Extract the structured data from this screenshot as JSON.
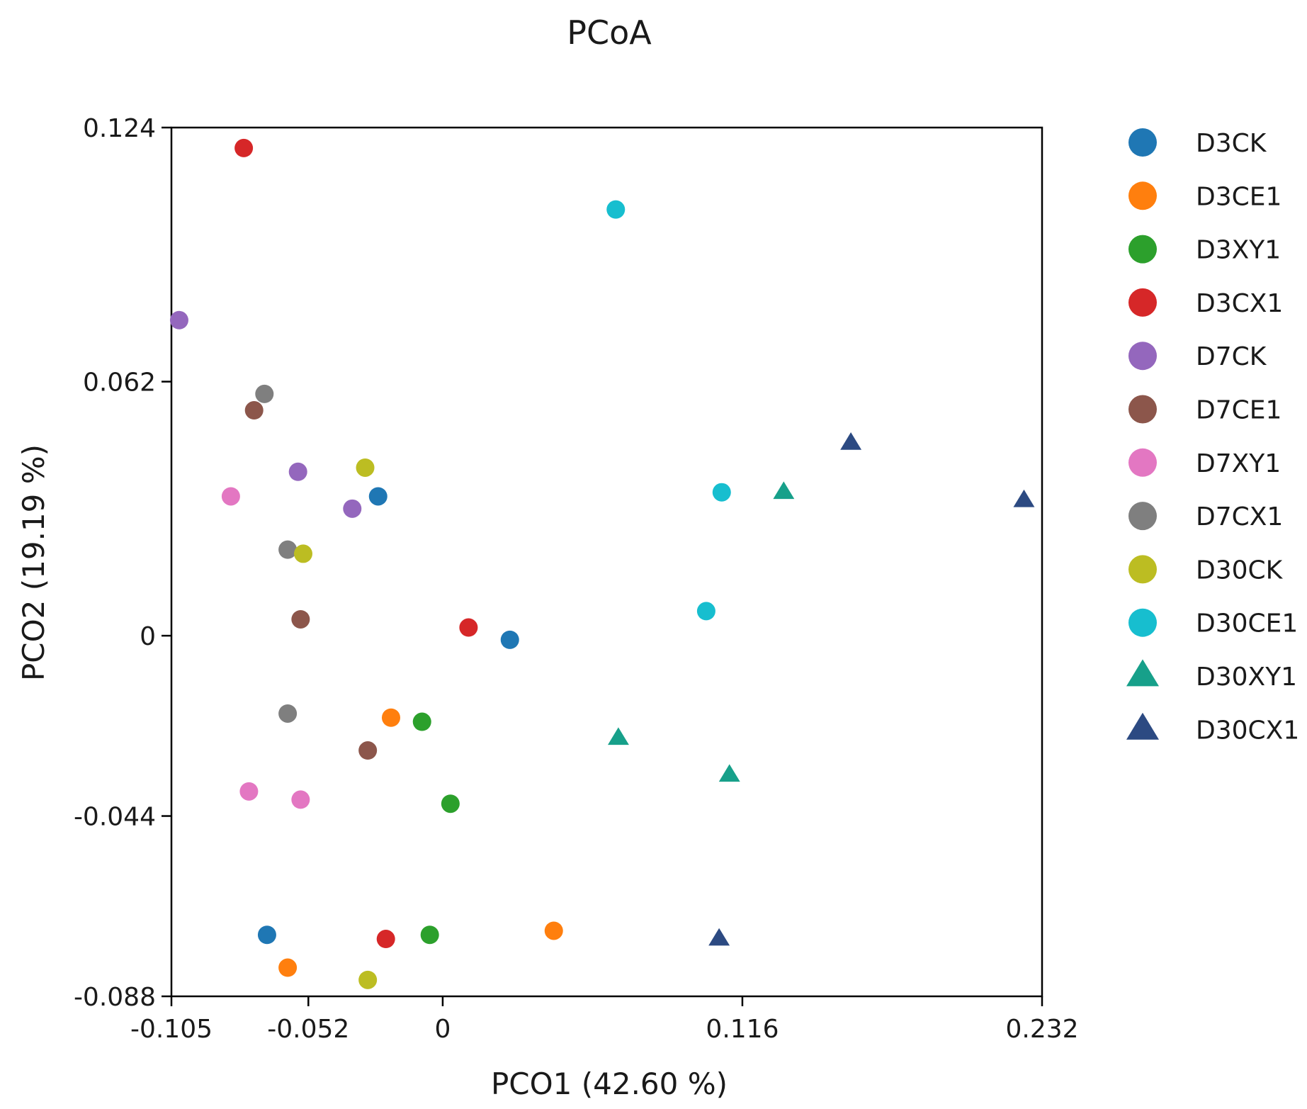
{
  "chart_data": {
    "type": "scatter",
    "title": "PCoA",
    "xlabel": "PCO1 (42.60 %)",
    "ylabel": "PCO2 (19.19 %)",
    "xlim": [
      -0.105,
      0.232
    ],
    "ylim": [
      -0.088,
      0.124
    ],
    "xticks": [
      -0.105,
      -0.052,
      0,
      0.116,
      0.232
    ],
    "xtick_labels": [
      "-0.105",
      "-0.052",
      "0",
      "0.116",
      "0.232"
    ],
    "yticks": [
      0.124,
      0.062,
      0,
      -0.044,
      -0.088
    ],
    "ytick_labels": [
      "0.124",
      "0.062",
      "0",
      "-0.044",
      "-0.088"
    ],
    "grid": false,
    "legend_position": "right",
    "series": [
      {
        "name": "D3CK",
        "color": "#1f77b4",
        "marker": "circle",
        "points": [
          [
            -0.025,
            0.034
          ],
          [
            0.026,
            -0.001
          ],
          [
            -0.068,
            -0.073
          ]
        ]
      },
      {
        "name": "D3CE1",
        "color": "#ff7f0e",
        "marker": "circle",
        "points": [
          [
            -0.02,
            -0.02
          ],
          [
            -0.06,
            -0.081
          ],
          [
            0.043,
            -0.072
          ]
        ]
      },
      {
        "name": "D3XY1",
        "color": "#2ca02c",
        "marker": "circle",
        "points": [
          [
            -0.008,
            -0.021
          ],
          [
            0.003,
            -0.041
          ],
          [
            -0.005,
            -0.073
          ]
        ]
      },
      {
        "name": "D3CX1",
        "color": "#d62728",
        "marker": "circle",
        "points": [
          [
            -0.077,
            0.119
          ],
          [
            0.01,
            0.002
          ],
          [
            -0.022,
            -0.074
          ]
        ]
      },
      {
        "name": "D7CK",
        "color": "#9467bd",
        "marker": "circle",
        "points": [
          [
            -0.102,
            0.077
          ],
          [
            -0.056,
            0.04
          ],
          [
            -0.035,
            0.031
          ]
        ]
      },
      {
        "name": "D7CE1",
        "color": "#8c564b",
        "marker": "circle",
        "points": [
          [
            -0.073,
            0.055
          ],
          [
            -0.055,
            0.004
          ],
          [
            -0.029,
            -0.028
          ]
        ]
      },
      {
        "name": "D7XY1",
        "color": "#e377c2",
        "marker": "circle",
        "points": [
          [
            -0.082,
            0.034
          ],
          [
            -0.075,
            -0.038
          ],
          [
            -0.055,
            -0.04
          ]
        ]
      },
      {
        "name": "D7CX1",
        "color": "#7f7f7f",
        "marker": "circle",
        "points": [
          [
            -0.069,
            0.059
          ],
          [
            -0.06,
            0.021
          ],
          [
            -0.06,
            -0.019
          ]
        ]
      },
      {
        "name": "D30CK",
        "color": "#bcbd22",
        "marker": "circle",
        "points": [
          [
            -0.03,
            0.041
          ],
          [
            -0.054,
            0.02
          ],
          [
            -0.029,
            -0.084
          ]
        ]
      },
      {
        "name": "D30CE1",
        "color": "#17becf",
        "marker": "circle",
        "points": [
          [
            0.067,
            0.104
          ],
          [
            0.108,
            0.035
          ],
          [
            0.102,
            0.006
          ]
        ]
      },
      {
        "name": "D30XY1",
        "color": "#17a08a",
        "marker": "triangle",
        "points": [
          [
            0.132,
            0.035
          ],
          [
            0.068,
            -0.025
          ],
          [
            0.111,
            -0.034
          ]
        ]
      },
      {
        "name": "D30CX1",
        "color": "#2c4a82",
        "marker": "triangle",
        "points": [
          [
            0.158,
            0.047
          ],
          [
            0.225,
            0.033
          ],
          [
            0.107,
            -0.074
          ]
        ]
      }
    ]
  }
}
